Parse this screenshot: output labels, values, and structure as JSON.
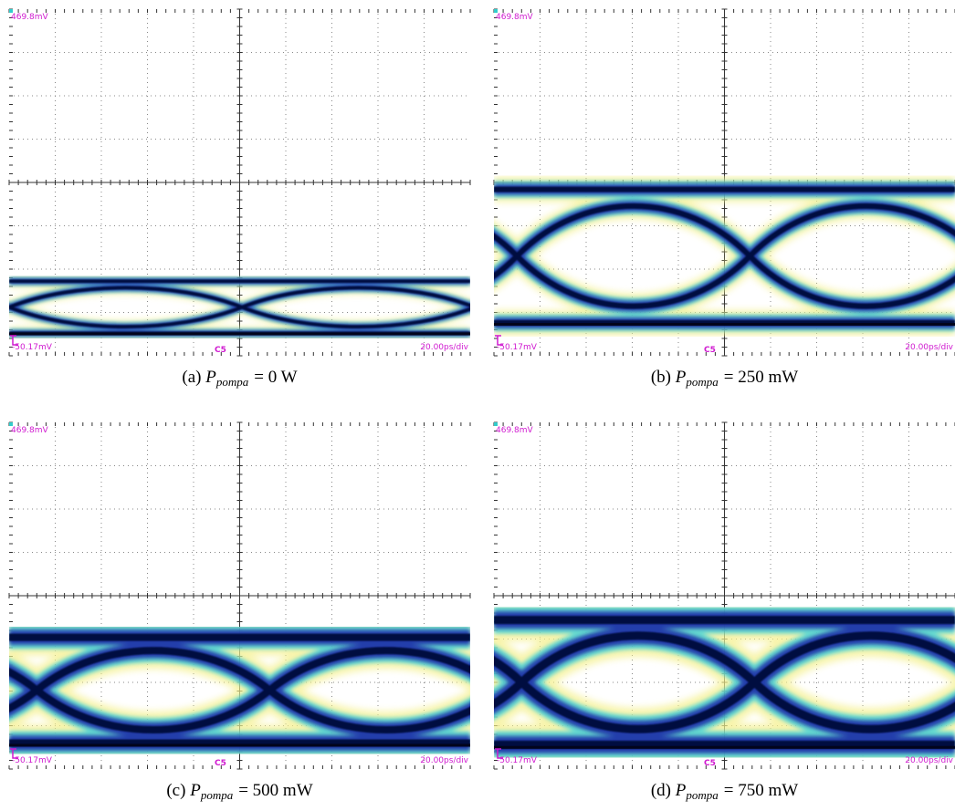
{
  "panels": [
    {
      "top_label": "469.8mV",
      "bottom_label": "-50.17mV",
      "channel": "C5",
      "timebase": "20.00ps/div",
      "caption": {
        "label": "(a)",
        "symbol": "P",
        "subscript": "pompa",
        "value": "= 0 W"
      }
    },
    {
      "top_label": "469.8mV",
      "bottom_label": "-50.17mV",
      "channel": "C5",
      "timebase": "20.00ps/div",
      "caption": {
        "label": "(b)",
        "symbol": "P",
        "subscript": "pompa",
        "value": "= 250 mW"
      }
    },
    {
      "top_label": "469.8mV",
      "bottom_label": "-50.17mV",
      "channel": "C5",
      "timebase": "20.00ps/div",
      "caption": {
        "label": "(c)",
        "symbol": "P",
        "subscript": "pompa",
        "value": "= 500 mW"
      }
    },
    {
      "top_label": "469.8mV",
      "bottom_label": "-50.17mV",
      "channel": "C5",
      "timebase": "20.00ps/div",
      "caption": {
        "label": "(d)",
        "symbol": "P",
        "subscript": "pompa",
        "value": "= 750 mW"
      }
    }
  ]
}
